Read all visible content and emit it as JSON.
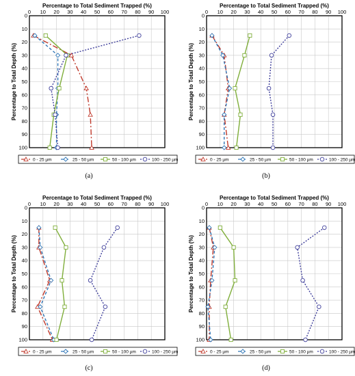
{
  "colors": {
    "0-25": "#c0392b",
    "25-50": "#2e75b6",
    "50-100": "#7fae3a",
    "100-250": "#3d3d9a"
  },
  "chart_data": [
    {
      "type": "line",
      "caption": "(a)",
      "title": "Percentage to Total Sediment Trapped (%)",
      "ylabel": "Percentage to Total Depth (%)",
      "xlim": [
        0,
        100
      ],
      "ylim": [
        0,
        100
      ],
      "y_inverted": true,
      "grid": true,
      "x_ticks": [
        "0",
        "10",
        "20",
        "30",
        "40",
        "50",
        "60",
        "70",
        "80",
        "90",
        "100"
      ],
      "y_ticks": [
        "0",
        "10",
        "20",
        "30",
        "40",
        "50",
        "60",
        "70",
        "80",
        "90",
        "100"
      ],
      "legend_position": "bottom",
      "series": [
        {
          "name": "0 - 25 µm",
          "color": "#c0392b",
          "marker": "triangle",
          "dash": "8,3,2,3",
          "points": [
            [
              3,
              15
            ],
            [
              31,
              30
            ],
            [
              42,
              55
            ],
            [
              45,
              75
            ],
            [
              46,
              100
            ]
          ]
        },
        {
          "name": "25 - 50 µm",
          "color": "#2e75b6",
          "marker": "diamond",
          "dash": "4,3",
          "points": [
            [
              4,
              15
            ],
            [
              21,
              30
            ],
            [
              21,
              55
            ],
            [
              20,
              75
            ],
            [
              20,
              100
            ]
          ]
        },
        {
          "name": "50 - 100 µm",
          "color": "#7fae3a",
          "marker": "square",
          "dash": "",
          "points": [
            [
              12,
              15
            ],
            [
              28,
              30
            ],
            [
              22,
              55
            ],
            [
              18,
              75
            ],
            [
              15,
              100
            ]
          ]
        },
        {
          "name": "100 - 250 µm",
          "color": "#3d3d9a",
          "marker": "circle",
          "dash": "2,2",
          "points": [
            [
              81,
              15
            ],
            [
              27,
              30
            ],
            [
              16,
              55
            ],
            [
              19,
              75
            ],
            [
              21,
              100
            ]
          ]
        }
      ]
    },
    {
      "type": "line",
      "caption": "(b)",
      "title": "Percentage to Total Sediment Trapped (%)",
      "ylabel": "Percentage to Total Depth (%)",
      "xlim": [
        0,
        100
      ],
      "ylim": [
        0,
        100
      ],
      "y_inverted": true,
      "grid": true,
      "x_ticks": [
        "0",
        "10",
        "20",
        "30",
        "40",
        "50",
        "60",
        "70",
        "80",
        "90",
        "100"
      ],
      "y_ticks": [
        "0",
        "10",
        "20",
        "30",
        "40",
        "50",
        "60",
        "70",
        "80",
        "90",
        "100"
      ],
      "legend_position": "bottom",
      "series": [
        {
          "name": "0 - 25 µm",
          "color": "#c0392b",
          "marker": "triangle",
          "dash": "8,3,2,3",
          "points": [
            [
              4,
              15
            ],
            [
              13,
              30
            ],
            [
              16,
              55
            ],
            [
              13,
              75
            ],
            [
              16,
              100
            ]
          ]
        },
        {
          "name": "25 - 50 µm",
          "color": "#2e75b6",
          "marker": "diamond",
          "dash": "4,3",
          "points": [
            [
              4,
              15
            ],
            [
              12,
              30
            ],
            [
              17,
              55
            ],
            [
              13,
              75
            ],
            [
              13,
              100
            ]
          ]
        },
        {
          "name": "50 - 100 µm",
          "color": "#7fae3a",
          "marker": "square",
          "dash": "",
          "points": [
            [
              32,
              15
            ],
            [
              28,
              30
            ],
            [
              21,
              55
            ],
            [
              25,
              75
            ],
            [
              22,
              100
            ]
          ]
        },
        {
          "name": "100 - 250 µm",
          "color": "#3d3d9a",
          "marker": "circle",
          "dash": "2,2",
          "points": [
            [
              61,
              15
            ],
            [
              48,
              30
            ],
            [
              46,
              55
            ],
            [
              49,
              75
            ],
            [
              49,
              100
            ]
          ]
        }
      ]
    },
    {
      "type": "line",
      "caption": "(c)",
      "title": "Percentage to Total Sediment Trapped (%)",
      "ylabel": "Percentage to Total Depth (%)",
      "xlim": [
        0,
        100
      ],
      "ylim": [
        0,
        100
      ],
      "y_inverted": true,
      "grid": true,
      "x_ticks": [
        "0",
        "10",
        "20",
        "30",
        "40",
        "50",
        "60",
        "70",
        "80",
        "90",
        "100"
      ],
      "y_ticks": [
        "0",
        "10",
        "20",
        "30",
        "40",
        "50",
        "60",
        "70",
        "80",
        "90",
        "100"
      ],
      "legend_position": "bottom",
      "series": [
        {
          "name": "0 - 25 µm",
          "color": "#c0392b",
          "marker": "triangle",
          "dash": "8,3,2,3",
          "points": [
            [
              7,
              15
            ],
            [
              7,
              30
            ],
            [
              15,
              55
            ],
            [
              6,
              75
            ],
            [
              17,
              100
            ]
          ]
        },
        {
          "name": "25 - 50 µm",
          "color": "#2e75b6",
          "marker": "diamond",
          "dash": "4,3",
          "points": [
            [
              7,
              15
            ],
            [
              8,
              30
            ],
            [
              16,
              55
            ],
            [
              8,
              75
            ],
            [
              18,
              100
            ]
          ]
        },
        {
          "name": "50 - 100 µm",
          "color": "#7fae3a",
          "marker": "square",
          "dash": "",
          "points": [
            [
              19,
              15
            ],
            [
              27,
              30
            ],
            [
              24,
              55
            ],
            [
              26,
              75
            ],
            [
              20,
              100
            ]
          ]
        },
        {
          "name": "100 - 250 µm",
          "color": "#3d3d9a",
          "marker": "circle",
          "dash": "2,2",
          "points": [
            [
              65,
              15
            ],
            [
              55,
              30
            ],
            [
              45,
              55
            ],
            [
              56,
              75
            ],
            [
              46,
              100
            ]
          ]
        }
      ]
    },
    {
      "type": "line",
      "caption": "(d)",
      "title": "Percentage to Total Sediment Trapped (%)",
      "ylabel": "Percentage to Total Depth (%)",
      "xlim": [
        0,
        100
      ],
      "ylim": [
        0,
        100
      ],
      "y_inverted": true,
      "grid": true,
      "x_ticks": [
        "0",
        "10",
        "20",
        "30",
        "40",
        "50",
        "60",
        "70",
        "80",
        "90",
        "100"
      ],
      "y_ticks": [
        "0",
        "10",
        "20",
        "30",
        "40",
        "50",
        "60",
        "70",
        "80",
        "90",
        "100"
      ],
      "legend_position": "bottom",
      "series": [
        {
          "name": "0 - 25 µm",
          "color": "#c0392b",
          "marker": "triangle",
          "dash": "8,3,2,3",
          "points": [
            [
              2,
              15
            ],
            [
              5,
              30
            ],
            [
              3,
              55
            ],
            [
              2,
              75
            ],
            [
              2,
              100
            ]
          ]
        },
        {
          "name": "25 - 50 µm",
          "color": "#2e75b6",
          "marker": "diamond",
          "dash": "4,3",
          "points": [
            [
              2,
              15
            ],
            [
              6,
              30
            ],
            [
              4,
              55
            ],
            [
              1,
              75
            ],
            [
              3,
              100
            ]
          ]
        },
        {
          "name": "50 - 100 µm",
          "color": "#7fae3a",
          "marker": "square",
          "dash": "",
          "points": [
            [
              10,
              15
            ],
            [
              20,
              30
            ],
            [
              21,
              55
            ],
            [
              14,
              75
            ],
            [
              18,
              100
            ]
          ]
        },
        {
          "name": "100 - 250 µm",
          "color": "#3d3d9a",
          "marker": "circle",
          "dash": "2,2",
          "points": [
            [
              87,
              15
            ],
            [
              67,
              30
            ],
            [
              71,
              55
            ],
            [
              83,
              75
            ],
            [
              73,
              100
            ]
          ]
        }
      ]
    }
  ]
}
